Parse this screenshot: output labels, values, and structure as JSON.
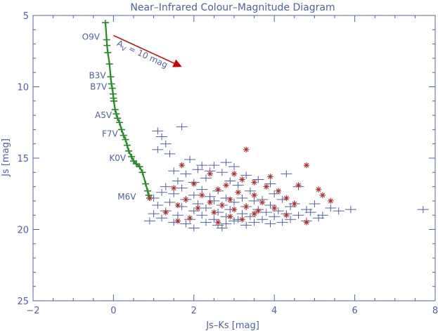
{
  "chart_data": {
    "type": "scatter",
    "title": "Near–Infrared Colour–Magnitude Diagram",
    "xlabel": "Js–Ks [mag]",
    "ylabel": "Js [mag]",
    "xlim": [
      -2,
      8
    ],
    "ylim": [
      25,
      5
    ],
    "y_axis_inverted": true,
    "x_ticks": [
      "−2",
      "0",
      "2",
      "4",
      "6",
      "8"
    ],
    "y_ticks": [
      "5",
      "10",
      "15",
      "20",
      "25"
    ],
    "grid": false,
    "axis_color": "#5060a8",
    "reddening_vector": {
      "label": "A",
      "label_sub": "V",
      "label_rest": " = 10 mag",
      "from": [
        0.0,
        6.4
      ],
      "to": [
        1.7,
        8.6
      ],
      "color": "#cc0000"
    },
    "main_sequence": {
      "color": "#228b22",
      "points": [
        [
          -0.2,
          5.5
        ],
        [
          -0.17,
          6.7
        ],
        [
          -0.16,
          7.1
        ],
        [
          -0.14,
          7.6
        ],
        [
          -0.1,
          8.4
        ],
        [
          -0.07,
          9.3
        ],
        [
          -0.05,
          9.8
        ],
        [
          -0.03,
          10.1
        ],
        [
          -0.01,
          10.5
        ],
        [
          0.0,
          10.8
        ],
        [
          0.01,
          11.0
        ],
        [
          0.04,
          11.6
        ],
        [
          0.07,
          11.9
        ],
        [
          0.1,
          12.2
        ],
        [
          0.15,
          12.5
        ],
        [
          0.2,
          13.0
        ],
        [
          0.25,
          13.4
        ],
        [
          0.3,
          13.7
        ],
        [
          0.34,
          14.1
        ],
        [
          0.38,
          14.5
        ],
        [
          0.45,
          14.9
        ],
        [
          0.5,
          15.2
        ],
        [
          0.57,
          15.4
        ],
        [
          0.65,
          15.6
        ],
        [
          0.72,
          16.0
        ],
        [
          0.8,
          16.8
        ],
        [
          0.85,
          17.3
        ],
        [
          0.88,
          17.6
        ],
        [
          0.9,
          17.8
        ]
      ],
      "labels": [
        {
          "text": "O9V",
          "x": -0.2,
          "y": 6.5
        },
        {
          "text": "B3V",
          "x": -0.05,
          "y": 9.2
        },
        {
          "text": "B7V",
          "x": -0.02,
          "y": 10.0
        },
        {
          "text": "A5V",
          "x": 0.1,
          "y": 12.0
        },
        {
          "text": "F7V",
          "x": 0.25,
          "y": 13.3
        },
        {
          "text": "K0V",
          "x": 0.45,
          "y": 15.0
        },
        {
          "text": "M6V",
          "x": 0.7,
          "y": 17.7
        }
      ]
    },
    "series": [
      {
        "marker": "cross",
        "color": "#5060a8",
        "points": [
          [
            1.7,
            12.8
          ],
          [
            1.1,
            13.1
          ],
          [
            1.2,
            13.5
          ],
          [
            1.3,
            14.0
          ],
          [
            1.1,
            14.4
          ],
          [
            1.4,
            14.7
          ],
          [
            1.9,
            15.1
          ],
          [
            2.2,
            15.5
          ],
          [
            2.5,
            15.5
          ],
          [
            2.8,
            15.3
          ],
          [
            2.1,
            15.8
          ],
          [
            2.4,
            15.9
          ],
          [
            3.0,
            15.6
          ],
          [
            1.5,
            15.9
          ],
          [
            1.8,
            16.1
          ],
          [
            2.7,
            16.0
          ],
          [
            3.3,
            16.2
          ],
          [
            4.3,
            16.1
          ],
          [
            3.6,
            16.5
          ],
          [
            2.3,
            16.4
          ],
          [
            1.6,
            16.6
          ],
          [
            2.0,
            16.7
          ],
          [
            2.9,
            16.6
          ],
          [
            3.1,
            16.9
          ],
          [
            3.9,
            16.8
          ],
          [
            4.6,
            17.0
          ],
          [
            1.3,
            17.0
          ],
          [
            1.7,
            17.1
          ],
          [
            2.2,
            17.2
          ],
          [
            2.6,
            17.3
          ],
          [
            3.4,
            17.3
          ],
          [
            4.0,
            17.5
          ],
          [
            1.2,
            17.4
          ],
          [
            1.5,
            17.5
          ],
          [
            2.0,
            17.6
          ],
          [
            2.4,
            17.7
          ],
          [
            2.8,
            17.8
          ],
          [
            3.2,
            17.8
          ],
          [
            3.7,
            17.9
          ],
          [
            4.2,
            17.9
          ],
          [
            1.0,
            17.8
          ],
          [
            1.8,
            17.9
          ],
          [
            2.5,
            18.0
          ],
          [
            3.0,
            18.1
          ],
          [
            3.5,
            18.0
          ],
          [
            4.5,
            18.2
          ],
          [
            5.0,
            18.2
          ],
          [
            1.4,
            18.1
          ],
          [
            2.1,
            18.2
          ],
          [
            2.7,
            18.3
          ],
          [
            3.3,
            18.4
          ],
          [
            3.9,
            18.3
          ],
          [
            4.4,
            18.4
          ],
          [
            1.1,
            18.3
          ],
          [
            1.7,
            18.4
          ],
          [
            2.3,
            18.5
          ],
          [
            2.9,
            18.6
          ],
          [
            3.6,
            18.6
          ],
          [
            4.1,
            18.7
          ],
          [
            4.8,
            18.6
          ],
          [
            5.4,
            18.5
          ],
          [
            1.3,
            18.7
          ],
          [
            2.0,
            18.7
          ],
          [
            2.6,
            18.8
          ],
          [
            3.2,
            18.9
          ],
          [
            3.8,
            18.8
          ],
          [
            4.3,
            18.9
          ],
          [
            4.9,
            18.8
          ],
          [
            5.6,
            18.7
          ],
          [
            1.0,
            18.9
          ],
          [
            1.6,
            19.0
          ],
          [
            2.2,
            19.0
          ],
          [
            2.8,
            19.1
          ],
          [
            3.4,
            19.1
          ],
          [
            4.0,
            19.1
          ],
          [
            4.6,
            19.0
          ],
          [
            5.2,
            19.0
          ],
          [
            5.9,
            18.6
          ],
          [
            7.7,
            18.6
          ],
          [
            1.2,
            19.2
          ],
          [
            1.9,
            19.3
          ],
          [
            2.5,
            19.3
          ],
          [
            3.0,
            19.4
          ],
          [
            3.7,
            19.3
          ],
          [
            4.4,
            19.3
          ],
          [
            5.1,
            19.2
          ],
          [
            1.5,
            19.5
          ],
          [
            2.3,
            19.5
          ],
          [
            2.8,
            19.6
          ],
          [
            3.5,
            19.5
          ],
          [
            4.2,
            19.5
          ],
          [
            4.8,
            19.4
          ],
          [
            0.9,
            19.4
          ],
          [
            1.8,
            19.6
          ],
          [
            2.6,
            19.7
          ],
          [
            3.3,
            19.7
          ],
          [
            3.9,
            19.6
          ],
          [
            2.0,
            19.9
          ],
          [
            2.7,
            19.9
          ],
          [
            3.1,
            19.3
          ]
        ]
      },
      {
        "marker": "asterisk",
        "color": "#b03030",
        "points": [
          [
            3.3,
            14.4
          ],
          [
            1.7,
            15.5
          ],
          [
            4.8,
            15.5
          ],
          [
            2.4,
            16.1
          ],
          [
            3.0,
            16.1
          ],
          [
            3.9,
            16.3
          ],
          [
            3.2,
            16.5
          ],
          [
            3.5,
            16.7
          ],
          [
            2.0,
            16.8
          ],
          [
            1.5,
            17.1
          ],
          [
            2.8,
            16.9
          ],
          [
            4.6,
            16.9
          ],
          [
            3.8,
            17.0
          ],
          [
            2.6,
            17.2
          ],
          [
            4.1,
            17.3
          ],
          [
            5.1,
            17.2
          ],
          [
            3.1,
            17.4
          ],
          [
            2.2,
            17.6
          ],
          [
            3.5,
            17.6
          ],
          [
            1.8,
            17.9
          ],
          [
            2.9,
            17.9
          ],
          [
            4.3,
            17.8
          ],
          [
            5.2,
            17.6
          ],
          [
            0.9,
            17.8
          ],
          [
            2.4,
            18.1
          ],
          [
            3.7,
            18.1
          ],
          [
            1.6,
            18.3
          ],
          [
            2.7,
            18.3
          ],
          [
            3.3,
            18.4
          ],
          [
            4.5,
            18.2
          ],
          [
            5.4,
            18.0
          ],
          [
            2.1,
            18.5
          ],
          [
            3.0,
            18.6
          ],
          [
            4.0,
            18.5
          ],
          [
            2.5,
            18.8
          ],
          [
            3.6,
            18.7
          ],
          [
            1.3,
            18.8
          ],
          [
            4.3,
            19.0
          ],
          [
            2.9,
            19.1
          ],
          [
            1.9,
            19.2
          ],
          [
            3.2,
            19.3
          ],
          [
            2.6,
            19.5
          ],
          [
            4.8,
            19.5
          ],
          [
            1.6,
            19.4
          ],
          [
            3.5,
            18.9
          ]
        ]
      }
    ]
  }
}
